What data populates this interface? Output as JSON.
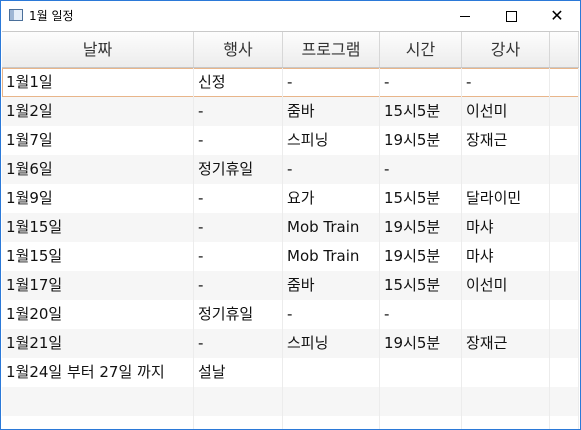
{
  "window": {
    "title": "1월 일정"
  },
  "table": {
    "columns": [
      "날짜",
      "행사",
      "프로그램",
      "시간",
      "강사"
    ],
    "rows": [
      [
        "1월1일",
        "신정",
        "-",
        "-",
        "-"
      ],
      [
        "1월2일",
        "-",
        "줌바",
        "15시5분",
        "이선미"
      ],
      [
        "1월7일",
        "-",
        "스피닝",
        "19시5분",
        "장재근"
      ],
      [
        "1월6일",
        "정기휴일",
        "-",
        "-",
        ""
      ],
      [
        "1월9일",
        "-",
        "요가",
        "15시5분",
        "달라이민"
      ],
      [
        "1월15일",
        "-",
        "Mob Train",
        "19시5분",
        "마샤"
      ],
      [
        "1월15일",
        "-",
        "Mob Train",
        "19시5분",
        "마샤"
      ],
      [
        "1월17일",
        "-",
        "줌바",
        "15시5분",
        "이선미"
      ],
      [
        "1월20일",
        "정기휴일",
        "-",
        "-",
        ""
      ],
      [
        "1월21일",
        "-",
        "스피닝",
        "19시5분",
        "장재근"
      ],
      [
        "1월24일 부터 27일 까지",
        "설날",
        "",
        "",
        ""
      ],
      [
        "",
        "",
        "",
        "",
        ""
      ],
      [
        "",
        "",
        "",
        "",
        ""
      ]
    ]
  }
}
